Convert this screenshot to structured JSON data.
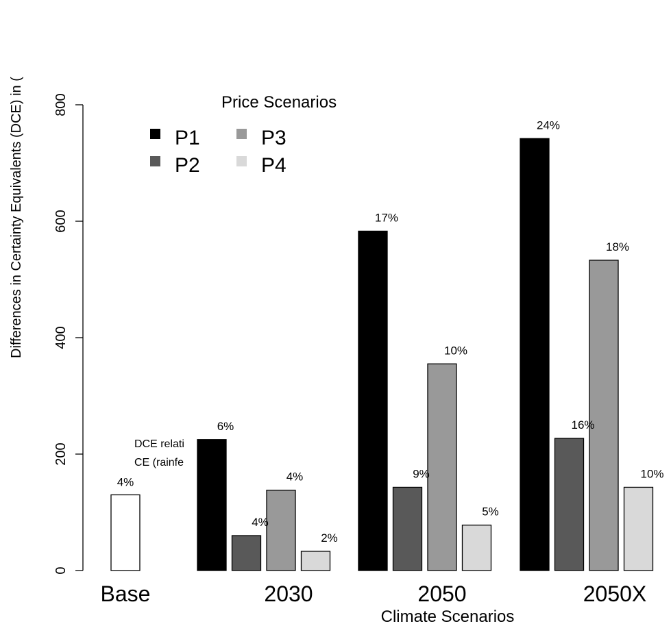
{
  "chart_data": {
    "type": "bar",
    "title": "",
    "xlabel": "Climate Scenarios",
    "ylabel": "Differences in Certainty Equivalents (DCE) in (",
    "ylim": [
      0,
      800
    ],
    "yticks": [
      "0",
      "200",
      "400",
      "600",
      "800"
    ],
    "categories": [
      "Base",
      "2030",
      "2050",
      "2050X"
    ],
    "grid": false,
    "legend": {
      "title": "Price Scenarios",
      "placement": "top-left",
      "entries": [
        {
          "name": "P1",
          "color": "#000000"
        },
        {
          "name": "P2",
          "color": "#595959"
        },
        {
          "name": "P3",
          "color": "#999999"
        },
        {
          "name": "P4",
          "color": "#d9d9d9"
        }
      ]
    },
    "base": {
      "name": "Base",
      "value": 130,
      "label": "4%",
      "color": "#ffffff"
    },
    "series": [
      {
        "name": "P1",
        "color": "#000000",
        "values": [
          null,
          225,
          583,
          742
        ],
        "labels": [
          "",
          "6%",
          "17%",
          "24%"
        ]
      },
      {
        "name": "P2",
        "color": "#595959",
        "values": [
          null,
          60,
          143,
          227
        ],
        "labels": [
          "",
          "4%",
          "9%",
          "16%"
        ]
      },
      {
        "name": "P3",
        "color": "#999999",
        "values": [
          null,
          138,
          355,
          533
        ],
        "labels": [
          "",
          "4%",
          "10%",
          "18%"
        ]
      },
      {
        "name": "P4",
        "color": "#d9d9d9",
        "values": [
          null,
          33,
          78,
          143
        ],
        "labels": [
          "",
          "2%",
          "5%",
          "10%"
        ]
      }
    ],
    "annotation": {
      "lines": [
        "DCE relati",
        "CE (rainfe"
      ]
    }
  }
}
